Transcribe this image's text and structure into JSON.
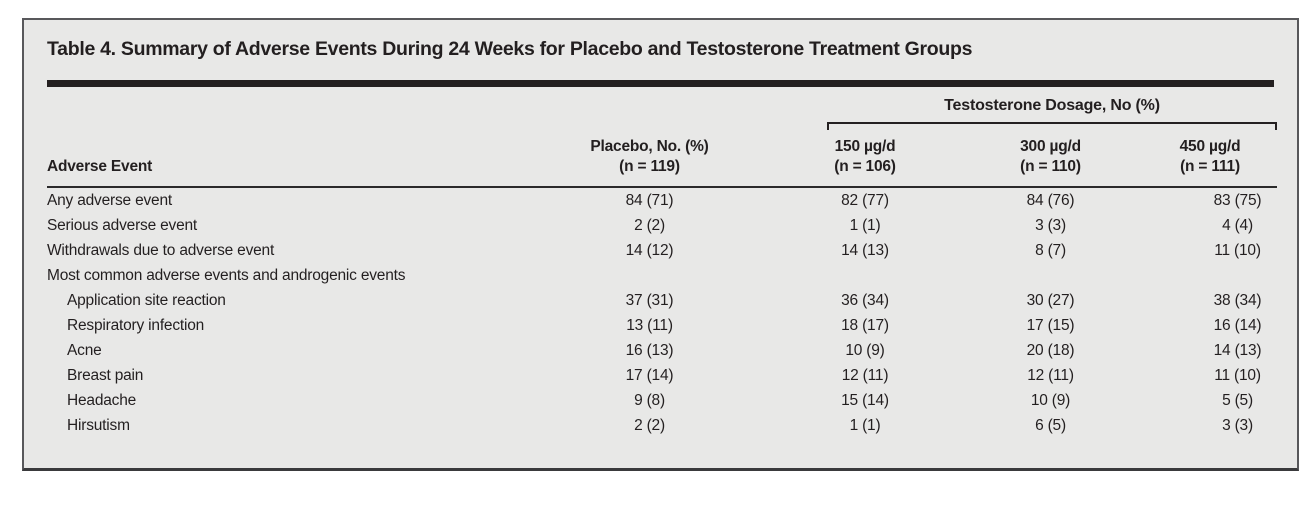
{
  "title": "Table 4. Summary of Adverse Events During 24 Weeks for Placebo and Testosterone Treatment Groups",
  "table": {
    "spanner_label": "Testosterone Dosage, No (%)",
    "row_header": "Adverse Event",
    "columns": [
      {
        "line1": "Placebo, No. (%)",
        "line2": "(n = 119)"
      },
      {
        "line1": "150 µg/d",
        "line2": "(n = 106)"
      },
      {
        "line1": "300 µg/d",
        "line2": "(n = 110)"
      },
      {
        "line1": "450 µg/d",
        "line2": "(n = 111)"
      }
    ],
    "rows": [
      {
        "label": "Any adverse event",
        "values": [
          "84 (71)",
          "82 (77)",
          "84 (76)",
          "83 (75)"
        ]
      },
      {
        "label": "Serious adverse event",
        "values": [
          "2 (2)",
          "1 (1)",
          "3 (3)",
          "4 (4)"
        ]
      },
      {
        "label": "Withdrawals due to adverse event",
        "values": [
          "14 (12)",
          "14 (13)",
          "8 (7)",
          "11 (10)"
        ]
      },
      {
        "label": "Most common adverse events and androgenic events",
        "values": [
          "",
          "",
          "",
          ""
        ]
      },
      {
        "label": "Application site reaction",
        "values": [
          "37 (31)",
          "36 (34)",
          "30 (27)",
          "38 (34)"
        ]
      },
      {
        "label": "Respiratory infection",
        "values": [
          "13 (11)",
          "18 (17)",
          "17 (15)",
          "16 (14)"
        ]
      },
      {
        "label": "Acne",
        "values": [
          "16 (13)",
          "10 (9)",
          "20 (18)",
          "14 (13)"
        ]
      },
      {
        "label": "Breast pain",
        "values": [
          "17 (14)",
          "12 (11)",
          "12 (11)",
          "11 (10)"
        ]
      },
      {
        "label": "Headache",
        "values": [
          "9 (8)",
          "15 (14)",
          "10 (9)",
          "5 (5)"
        ]
      },
      {
        "label": "Hirsutism",
        "values": [
          "2 (2)",
          "1 (1)",
          "6 (5)",
          "3 (3)"
        ]
      }
    ]
  },
  "colors": {
    "panel_background": "#e8e8e7",
    "text": "#231f20",
    "rule": "#242021",
    "panel_border": "#58585b"
  }
}
